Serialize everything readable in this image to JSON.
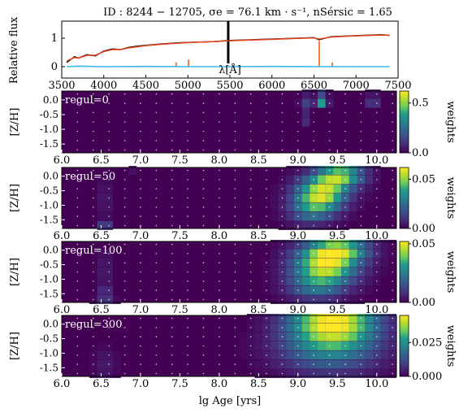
{
  "chart_data": [
    {
      "type": "line",
      "title": "ID : 8244 − 12705,   σe = 76.1 km · s⁻¹,   nSérsic = 1.65",
      "xlabel": "λ[Å]",
      "ylabel": "Relative flux",
      "xlim": [
        3500,
        7500
      ],
      "ylim": [
        -0.4,
        1.6
      ],
      "xticks": [
        "3500",
        "4000",
        "4500",
        "5000",
        "5500",
        "6000",
        "6500",
        "7000",
        "7500"
      ],
      "yticks": [
        "0",
        "1"
      ],
      "colors": {
        "data": "#000000",
        "model": "#e8451e",
        "residuals": "#3db6e6",
        "gas": "#f27d3c"
      },
      "series": [
        {
          "key": "data",
          "x": [
            3560,
            3650,
            3700,
            3800,
            3900,
            4000,
            4100,
            4200,
            4300,
            4400,
            4500,
            4700,
            4900,
            5100,
            5300,
            5500,
            5700,
            5900,
            6100,
            6300,
            6500,
            6560,
            6700,
            6900,
            7100,
            7300,
            7400
          ],
          "y": [
            0.15,
            0.35,
            0.3,
            0.42,
            0.38,
            0.55,
            0.62,
            0.6,
            0.68,
            0.72,
            0.75,
            0.8,
            0.84,
            0.86,
            0.88,
            0.92,
            0.94,
            0.96,
            0.98,
            1.0,
            1.02,
            0.95,
            1.05,
            1.08,
            1.1,
            1.12,
            1.1
          ]
        },
        {
          "key": "model",
          "x": [
            3560,
            3650,
            3700,
            3800,
            3900,
            4000,
            4100,
            4200,
            4300,
            4400,
            4500,
            4700,
            4900,
            5100,
            5300,
            5500,
            5700,
            5900,
            6100,
            6300,
            6500,
            6560,
            6700,
            6900,
            7100,
            7300,
            7400
          ],
          "y": [
            0.2,
            0.32,
            0.3,
            0.4,
            0.4,
            0.53,
            0.6,
            0.6,
            0.66,
            0.7,
            0.74,
            0.79,
            0.83,
            0.86,
            0.88,
            0.91,
            0.93,
            0.95,
            0.97,
            0.99,
            1.01,
            0.97,
            1.04,
            1.07,
            1.09,
            1.11,
            1.1
          ]
        },
        {
          "key": "residuals",
          "x": [
            3560,
            3700,
            4000,
            4500,
            5000,
            5500,
            6000,
            6500,
            7000,
            7400
          ],
          "y": [
            0.0,
            0.02,
            0.0,
            0.01,
            0.0,
            0.0,
            0.01,
            0.0,
            0.0,
            0.0
          ]
        }
      ],
      "gas_lines": [
        {
          "x": 4861,
          "y": 0.15
        },
        {
          "x": 5007,
          "y": 0.25
        },
        {
          "x": 6563,
          "y": 0.9
        },
        {
          "x": 6717,
          "y": 0.15
        }
      ]
    },
    {
      "type": "heatmap",
      "label": "regul=0",
      "colorbar_label": "weights",
      "xlim": [
        6.0,
        10.25
      ],
      "ylim": [
        -1.8,
        0.3
      ],
      "xticks": [
        "6.0",
        "6.5",
        "7.0",
        "7.5",
        "8.0",
        "8.5",
        "9.0",
        "9.5",
        "10.0"
      ],
      "yticks": [
        "0.0",
        "-0.5",
        "-1.0",
        "-1.5"
      ],
      "cbar_ticks": [
        "0.5",
        "0.0"
      ],
      "cbar_max": 0.62,
      "blobs": [
        {
          "age": 9.3,
          "z": 0.0,
          "w": 0.62,
          "sa": 0.05,
          "sz": 0.12
        },
        {
          "age": 9.1,
          "z": 0.0,
          "w": 0.22,
          "sa": 0.05,
          "sz": 0.12
        },
        {
          "age": 9.1,
          "z": -0.6,
          "w": 0.18,
          "sa": 0.05,
          "sz": 0.12
        },
        {
          "age": 9.95,
          "z": 0.0,
          "w": 0.25,
          "sa": 0.05,
          "sz": 0.12
        }
      ]
    },
    {
      "type": "heatmap",
      "label": "regul=50",
      "colorbar_label": "weights",
      "xlim": [
        6.0,
        10.25
      ],
      "ylim": [
        -1.8,
        0.3
      ],
      "xticks": [
        "6.0",
        "6.5",
        "7.0",
        "7.5",
        "8.0",
        "8.5",
        "9.0",
        "9.5",
        "10.0"
      ],
      "yticks": [
        "0.0",
        "-0.5",
        "-1.0",
        "-1.5"
      ],
      "cbar_ticks": [
        "0.05",
        "0.00"
      ],
      "cbar_max": 0.062,
      "blobs": [
        {
          "age": 9.3,
          "z": -0.6,
          "w": 0.055,
          "sa": 0.22,
          "sz": 0.42
        },
        {
          "age": 9.55,
          "z": 0.05,
          "w": 0.045,
          "sa": 0.2,
          "sz": 0.3
        },
        {
          "age": 9.15,
          "z": -1.2,
          "w": 0.02,
          "sa": 0.2,
          "sz": 0.35
        },
        {
          "age": 6.55,
          "z": -1.65,
          "w": 0.018,
          "sa": 0.06,
          "sz": 0.1
        },
        {
          "age": 6.55,
          "z": -0.8,
          "w": 0.006,
          "sa": 0.06,
          "sz": 0.5
        },
        {
          "age": 6.9,
          "z": 0.1,
          "w": 0.005,
          "sa": 0.06,
          "sz": 0.1
        }
      ]
    },
    {
      "type": "heatmap",
      "label": "regul=100",
      "colorbar_label": "weights",
      "xlim": [
        6.0,
        10.25
      ],
      "ylim": [
        -1.8,
        0.3
      ],
      "xticks": [
        "6.0",
        "6.5",
        "7.0",
        "7.5",
        "8.0",
        "8.5",
        "9.0",
        "9.5",
        "10.0"
      ],
      "yticks": [
        "0.0",
        "-0.5",
        "-1.0",
        "-1.5"
      ],
      "cbar_ticks": [
        "0.05",
        "0.00"
      ],
      "cbar_max": 0.052,
      "blobs": [
        {
          "age": 9.35,
          "z": -0.5,
          "w": 0.048,
          "sa": 0.28,
          "sz": 0.5
        },
        {
          "age": 9.55,
          "z": 0.05,
          "w": 0.03,
          "sa": 0.25,
          "sz": 0.3
        },
        {
          "age": 9.2,
          "z": -1.3,
          "w": 0.015,
          "sa": 0.25,
          "sz": 0.35
        },
        {
          "age": 6.55,
          "z": -1.6,
          "w": 0.012,
          "sa": 0.07,
          "sz": 0.2
        },
        {
          "age": 6.55,
          "z": -0.7,
          "w": 0.005,
          "sa": 0.07,
          "sz": 0.5
        }
      ]
    },
    {
      "type": "heatmap",
      "label": "regul=300",
      "colorbar_label": "weights",
      "xlim": [
        6.0,
        10.25
      ],
      "ylim": [
        -1.8,
        0.3
      ],
      "xticks": [
        "6.0",
        "6.5",
        "7.0",
        "7.5",
        "8.0",
        "8.5",
        "9.0",
        "9.5",
        "10.0"
      ],
      "yticks": [
        "0.0",
        "-0.5",
        "-1.0",
        "-1.5"
      ],
      "cbar_ticks": [
        "0.025",
        "0.000"
      ],
      "cbar_max": 0.045,
      "blobs": [
        {
          "age": 9.45,
          "z": 0.15,
          "w": 0.044,
          "sa": 0.38,
          "sz": 0.6
        },
        {
          "age": 9.4,
          "z": -0.9,
          "w": 0.018,
          "sa": 0.45,
          "sz": 0.6
        },
        {
          "age": 6.55,
          "z": -1.4,
          "w": 0.004,
          "sa": 0.1,
          "sz": 0.4
        }
      ]
    }
  ],
  "shared_xlabel": "lg Age [yrs]",
  "shared_ylabel": "[Z/H]"
}
